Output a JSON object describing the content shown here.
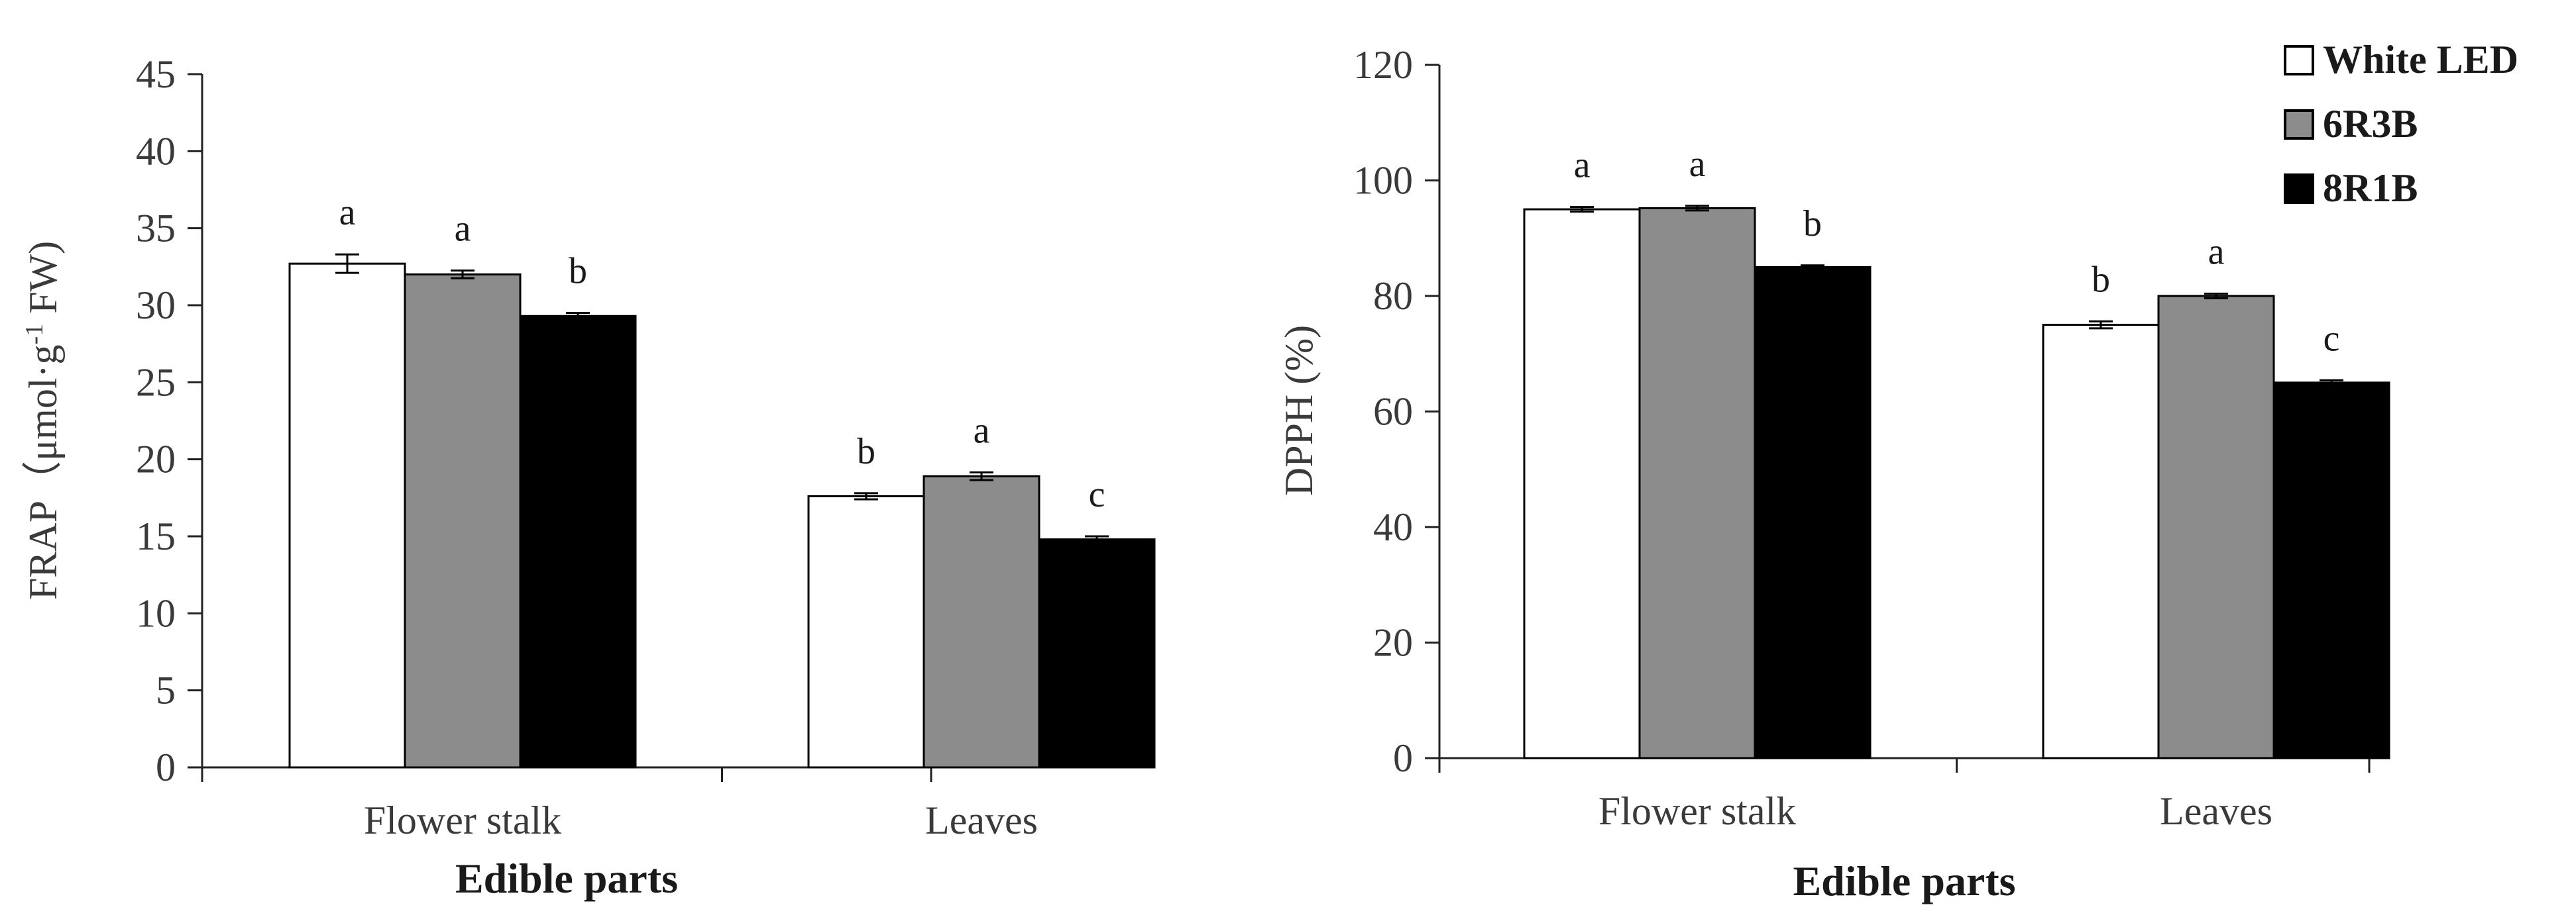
{
  "legend": [
    {
      "label": "White LED",
      "color": "#ffffff"
    },
    {
      "label": "6R3B",
      "color": "#8c8c8c"
    },
    {
      "label": "8R1B",
      "color": "#000000"
    }
  ],
  "chart_data": [
    {
      "type": "bar",
      "ylabel_main": "FRAP（μmol·g",
      "ylabel_sup": "-1",
      "ylabel_tail": " FW)",
      "xlabel": "Edible parts",
      "categories": [
        "Flower stalk",
        "Leaves"
      ],
      "ylim": [
        0,
        45
      ],
      "yticks": [
        0,
        5,
        10,
        15,
        20,
        25,
        30,
        35,
        40,
        45
      ],
      "series": [
        {
          "name": "White LED",
          "values": [
            32.7,
            17.6
          ],
          "errors": [
            0.6,
            0.2
          ],
          "letters": [
            "a",
            "b"
          ]
        },
        {
          "name": "6R3B",
          "values": [
            32.0,
            18.9
          ],
          "errors": [
            0.25,
            0.25
          ],
          "letters": [
            "a",
            "a"
          ]
        },
        {
          "name": "8R1B",
          "values": [
            29.3,
            14.8
          ],
          "errors": [
            0.2,
            0.2
          ],
          "letters": [
            "b",
            "c"
          ]
        }
      ]
    },
    {
      "type": "bar",
      "ylabel_main": "DPPH (%)",
      "ylabel_sup": "",
      "ylabel_tail": "",
      "xlabel": "Edible parts",
      "categories": [
        "Flower stalk",
        "Leaves"
      ],
      "ylim": [
        0,
        120
      ],
      "yticks": [
        0,
        20,
        40,
        60,
        80,
        100,
        120
      ],
      "series": [
        {
          "name": "White LED",
          "values": [
            95.0,
            75.0
          ],
          "errors": [
            0.4,
            0.6
          ],
          "letters": [
            "a",
            "b"
          ]
        },
        {
          "name": "6R3B",
          "values": [
            95.2,
            80.0
          ],
          "errors": [
            0.4,
            0.4
          ],
          "letters": [
            "a",
            "a"
          ]
        },
        {
          "name": "8R1B",
          "values": [
            85.0,
            65.0
          ],
          "errors": [
            0.3,
            0.4
          ],
          "letters": [
            "b",
            "c"
          ]
        }
      ]
    }
  ]
}
